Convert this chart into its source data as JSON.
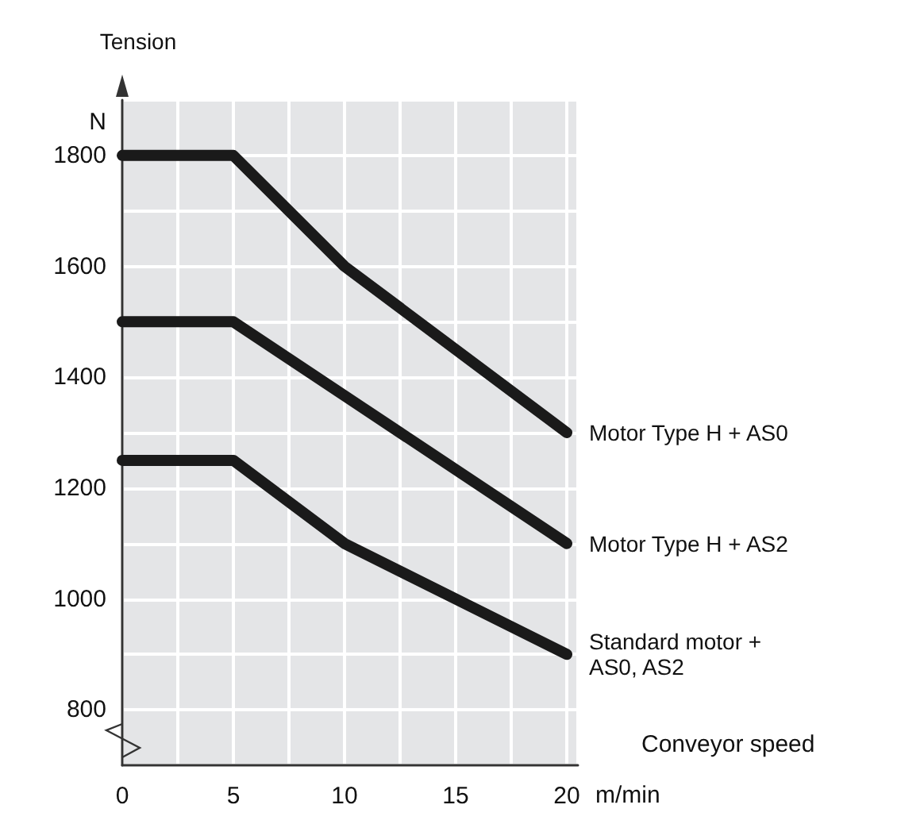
{
  "chart_data": {
    "type": "line",
    "xlabel": "Conveyor speed",
    "ylabel": "Tension",
    "annotations": [
      "N",
      "m/min"
    ],
    "series": [
      {
        "name": "Motor Type H + AS0",
        "color": "#1a1a1a",
        "x": [
          0,
          5,
          10,
          20
        ],
        "values": [
          1800,
          1800,
          1600,
          1300
        ]
      },
      {
        "name": "Motor Type H + AS2",
        "color": "#1a1a1a",
        "x": [
          0,
          5,
          20
        ],
        "values": [
          1500,
          1500,
          1100
        ]
      },
      {
        "name": "Standard motor + AS0, AS2",
        "color": "#1a1a1a",
        "x": [
          0,
          5,
          10,
          20
        ],
        "values": [
          1250,
          1250,
          1100,
          900
        ]
      }
    ],
    "xlim": [
      0,
      20.5
    ],
    "xticks": [
      0,
      5,
      10,
      15,
      20
    ],
    "ylim": [
      700,
      1900
    ],
    "yticks": [
      800,
      1000,
      1200,
      1400,
      1600,
      1800
    ],
    "grid": true,
    "marker": "none",
    "line_style": "solid"
  }
}
